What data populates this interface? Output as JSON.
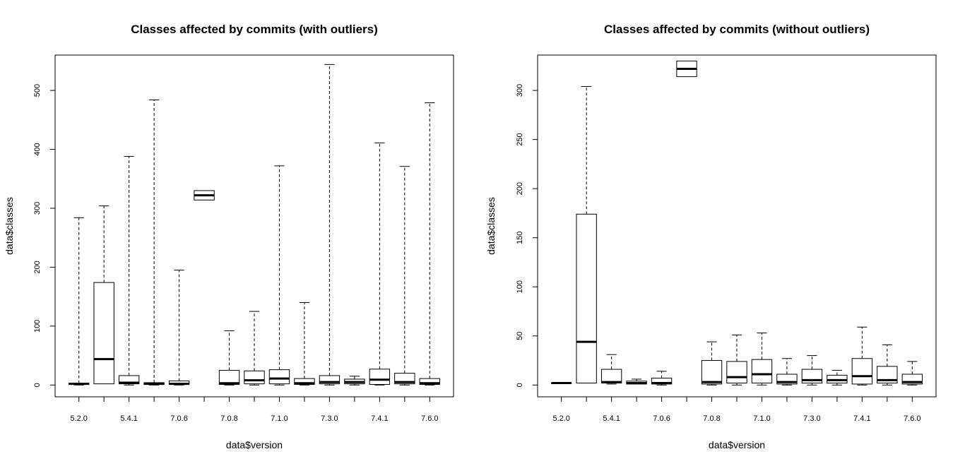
{
  "chart_data": [
    {
      "type": "boxplot",
      "title": "Classes affected by commits (with outliers)",
      "xlabel": "data$version",
      "ylabel": "data$classes",
      "ylim": [
        -20,
        560
      ],
      "yticks": [
        0,
        100,
        200,
        300,
        400,
        500
      ],
      "x_tick_labels": [
        "5.2.0",
        "",
        "5.4.1",
        "",
        "7.0.6",
        "",
        "7.0.8",
        "",
        "7.1.0",
        "",
        "7.3.0",
        "",
        "7.4.1",
        "",
        "7.6.0"
      ],
      "boxes": [
        {
          "min": 0,
          "q1": 1,
          "median": 2,
          "q3": 3,
          "max": 284
        },
        {
          "min": 2,
          "q1": 2,
          "median": 44,
          "q3": 174,
          "max": 304
        },
        {
          "min": 0,
          "q1": 2,
          "median": 4,
          "q3": 16,
          "max": 388
        },
        {
          "min": 0,
          "q1": 1,
          "median": 2,
          "q3": 4,
          "max": 484
        },
        {
          "min": 0,
          "q1": 1,
          "median": 2,
          "q3": 7,
          "max": 195
        },
        {
          "min": 314,
          "q1": 314,
          "median": 322,
          "q3": 330,
          "max": 330
        },
        {
          "min": 0,
          "q1": 1,
          "median": 3,
          "q3": 25,
          "max": 92
        },
        {
          "min": 0,
          "q1": 2,
          "median": 8,
          "q3": 24,
          "max": 125
        },
        {
          "min": 0,
          "q1": 2,
          "median": 11,
          "q3": 26,
          "max": 372
        },
        {
          "min": 0,
          "q1": 1,
          "median": 3,
          "q3": 11,
          "max": 140
        },
        {
          "min": 0,
          "q1": 2,
          "median": 5,
          "q3": 16,
          "max": 544
        },
        {
          "min": 0,
          "q1": 2,
          "median": 5,
          "q3": 10,
          "max": 15
        },
        {
          "min": 0,
          "q1": 1,
          "median": 9,
          "q3": 27,
          "max": 411
        },
        {
          "min": 0,
          "q1": 2,
          "median": 5,
          "q3": 20,
          "max": 371
        },
        {
          "min": 0,
          "q1": 1,
          "median": 3,
          "q3": 11,
          "max": 479
        }
      ]
    },
    {
      "type": "boxplot",
      "title": "Classes affected by commits (without outliers)",
      "xlabel": "data$version",
      "ylabel": "data$classes",
      "ylim": [
        -12,
        336
      ],
      "yticks": [
        0,
        50,
        100,
        150,
        200,
        250,
        300
      ],
      "x_tick_labels": [
        "5.2.0",
        "",
        "5.4.1",
        "",
        "7.0.6",
        "",
        "7.0.8",
        "",
        "7.1.0",
        "",
        "7.3.0",
        "",
        "7.4.1",
        "",
        "7.6.0"
      ],
      "boxes": [
        {
          "min": 2,
          "q1": 2,
          "median": 2,
          "q3": 2,
          "max": 2
        },
        {
          "min": 2,
          "q1": 2,
          "median": 44,
          "q3": 174,
          "max": 304
        },
        {
          "min": 1,
          "q1": 2,
          "median": 3,
          "q3": 16,
          "max": 31
        },
        {
          "min": 1,
          "q1": 1,
          "median": 2,
          "q3": 4,
          "max": 6
        },
        {
          "min": 0,
          "q1": 1,
          "median": 2,
          "q3": 7,
          "max": 14
        },
        {
          "min": 314,
          "q1": 314,
          "median": 322,
          "q3": 330,
          "max": 330
        },
        {
          "min": 0,
          "q1": 1,
          "median": 3,
          "q3": 25,
          "max": 44
        },
        {
          "min": 0,
          "q1": 2,
          "median": 8,
          "q3": 24,
          "max": 51
        },
        {
          "min": 0,
          "q1": 2,
          "median": 11,
          "q3": 26,
          "max": 53
        },
        {
          "min": 0,
          "q1": 1,
          "median": 3,
          "q3": 11,
          "max": 27
        },
        {
          "min": 0,
          "q1": 2,
          "median": 5,
          "q3": 16,
          "max": 30
        },
        {
          "min": 0,
          "q1": 2,
          "median": 5,
          "q3": 10,
          "max": 15
        },
        {
          "min": 0,
          "q1": 1,
          "median": 9,
          "q3": 27,
          "max": 59
        },
        {
          "min": 0,
          "q1": 2,
          "median": 5,
          "q3": 19,
          "max": 41
        },
        {
          "min": 0,
          "q1": 1,
          "median": 3,
          "q3": 11,
          "max": 24
        }
      ]
    }
  ]
}
